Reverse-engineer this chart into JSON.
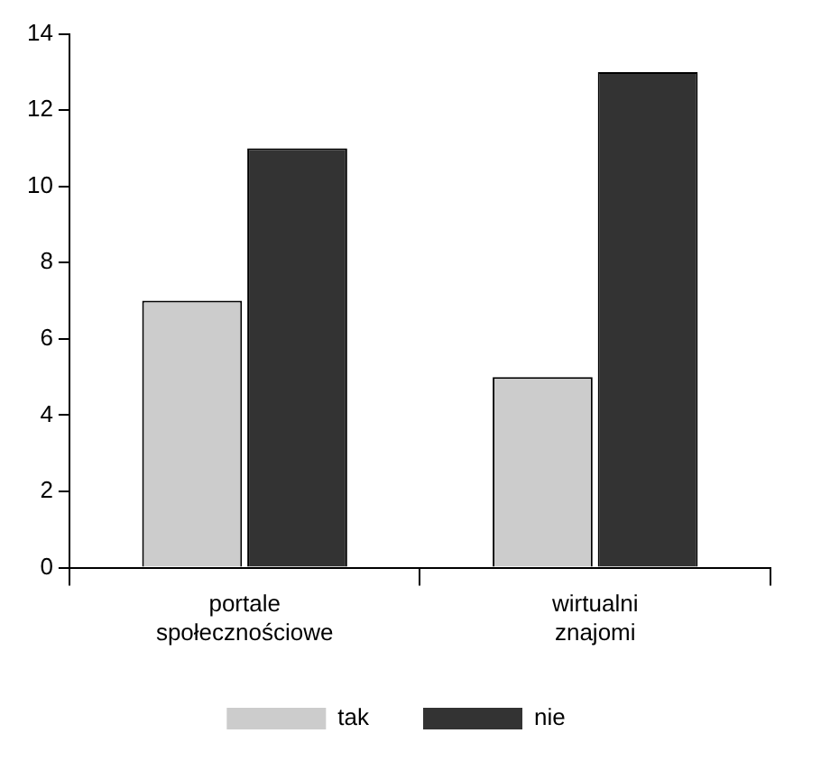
{
  "chart_data": {
    "type": "bar",
    "categories": [
      "portale społecznościowe",
      "wirtualni znajomi"
    ],
    "series": [
      {
        "name": "tak",
        "color": "#cccccc",
        "values": [
          7,
          5
        ]
      },
      {
        "name": "nie",
        "color": "#333333",
        "values": [
          11,
          13
        ]
      }
    ],
    "ylim": [
      0,
      14
    ],
    "yticks": [
      0,
      2,
      4,
      6,
      8,
      10,
      12,
      14
    ],
    "grid": false,
    "legend": "bottom"
  }
}
